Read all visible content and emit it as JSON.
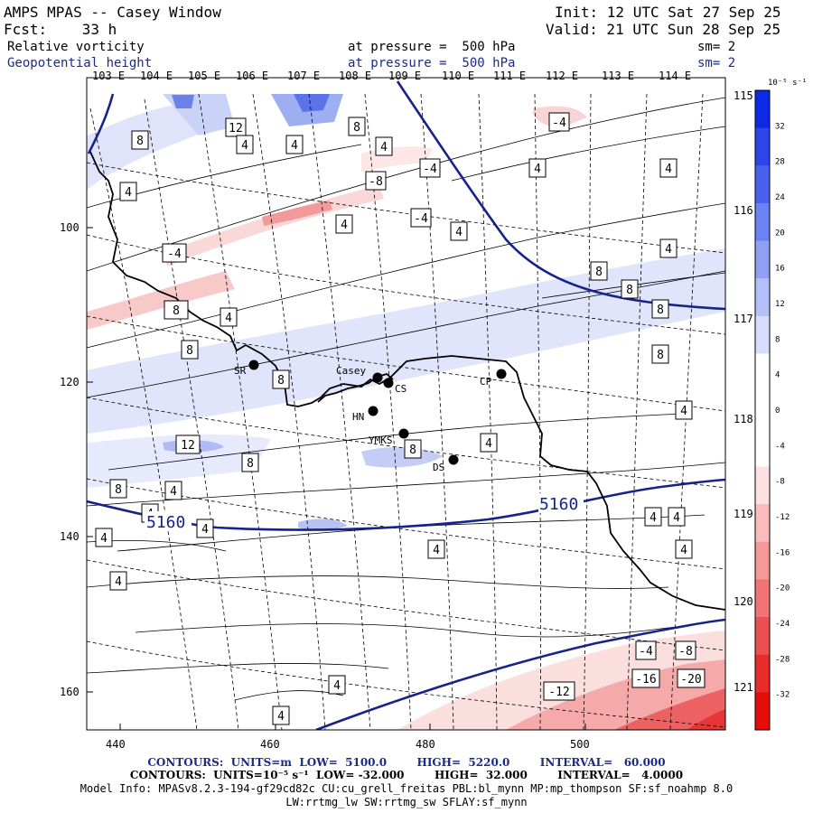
{
  "header": {
    "model": "AMPS MPAS -- Casey Window",
    "init": "Init: 12 UTC Sat 27 Sep 25",
    "fcst": "Fcst:    33 h",
    "valid": "Valid: 21 UTC Sun 28 Sep 25",
    "field1_name": "Relative vorticity",
    "field1_level": "at pressure =  500 hPa",
    "field1_sm": "sm= 2",
    "field2_name": "Geopotential height",
    "field2_level": "at pressure =  500 hPa",
    "field2_sm": "sm= 2"
  },
  "longitude_labels": [
    "103 E",
    "104 E",
    "105 E",
    "106 E",
    "107 E",
    "108 E",
    "109 E",
    "110 E",
    "111 E",
    "112 E",
    "113 E",
    "114 E"
  ],
  "right_longitude_labels": [
    "115 E",
    "116 E",
    "117 E",
    "118 E",
    "119 E",
    "120 E",
    "121 E"
  ],
  "x_ticks": [
    "440",
    "460",
    "480",
    "500"
  ],
  "y_ticks": [
    "100",
    "120",
    "140",
    "160"
  ],
  "stations": [
    "SR",
    "Casey",
    "CS",
    "CP",
    "HN",
    "YMKS",
    "DS"
  ],
  "colorbar": {
    "unit": "10⁻⁵ s⁻¹",
    "labels": [
      "32",
      "28",
      "24",
      "20",
      "16",
      "12",
      "8",
      "4",
      "0",
      "-4",
      "-8",
      "-12",
      "-16",
      "-20",
      "-24",
      "-28",
      "-32"
    ],
    "colors": [
      "#0c2ae6",
      "#2a46ea",
      "#4862ee",
      "#6b82f2",
      "#8fa0f4",
      "#b3bff8",
      "#d7ddfc",
      "#ffffff",
      "#ffffff",
      "#ffffff",
      "#fde0e0",
      "#f9bcbc",
      "#f59898",
      "#f07474",
      "#ec5050",
      "#e82c2c",
      "#e60c0c"
    ]
  },
  "contour_labels": [
    "-4",
    "-8",
    "-12",
    "-16",
    "-20",
    "4",
    "8",
    "12",
    "5160"
  ],
  "footer": {
    "line1": "CONTOURS:  UNITS=m  LOW=  5100.0        HIGH=  5220.0        INTERVAL=   60.000",
    "line2": "CONTOURS:  UNITS=10⁻⁵ s⁻¹  LOW= -32.000        HIGH=  32.000        INTERVAL=   4.0000",
    "line3": "Model Info: MPASv8.2.3-194-gf29cd82c CU:cu_grell_freitas PBL:bl_mynn MP:mp_thompson SF:sf_noahmp 8.0",
    "line4": "LW:rrtmg_lw SW:rrtmg_sw SFLAY:sf_mynn"
  }
}
